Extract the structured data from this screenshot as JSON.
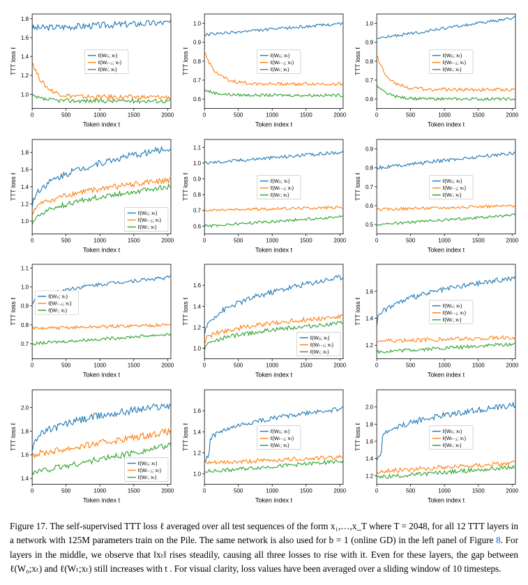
{
  "figure_number": "Figure 17.",
  "caption_text": "The self-supervised TTT loss ℓ averaged over all test sequences of the form x₁,…,x_T where T = 2048, for all 12 TTT layers in a network with 125M parameters train on the Pile. The same network is also used for b = 1 (online GD) in the left panel of Figure ",
  "caption_link": "8",
  "caption_text2": ". For layers in the middle, we observe that ‖xₜ‖ rises steadily, causing all three losses to rise with it. Even for these layers, the gap between ℓ(W₀;xₜ) and ℓ(Wₜ;xₜ) still increases with t . For visual clarity, loss values have been averaged over a sliding window of 10 timesteps.",
  "xlabel": "Token index t",
  "ylabel": "TTT loss ℓ",
  "series_colors": {
    "blue": "#1f77b4",
    "orange": "#ff7f0e",
    "green": "#2ca02c"
  },
  "legend_labels": [
    "ℓ(W₀; xₜ)",
    "ℓ(Wₜ₋₁; xₜ)",
    "ℓ(Wₜ; xₜ)"
  ],
  "xlim": [
    0,
    2048
  ],
  "xticks": [
    0,
    500,
    1000,
    1500,
    2000
  ],
  "plot_style": {
    "background_color": "#ffffff",
    "line_width": 1.1,
    "tick_fontsize": 8,
    "label_fontsize": 9,
    "legend_fontsize": 7.5,
    "noise_amplitude": 0.02
  },
  "panels": [
    {
      "ylim": [
        0.85,
        1.85
      ],
      "yticks": [
        1.0,
        1.2,
        1.4,
        1.6,
        1.8
      ],
      "legend_pos": "center",
      "series": [
        {
          "color": "blue",
          "start": 1.7,
          "end": 1.76,
          "noise": 0.035,
          "dip_start": false
        },
        {
          "color": "orange",
          "start": 1.35,
          "end": 0.97,
          "noise": 0.025,
          "dip_start": true,
          "decay": 0.15
        },
        {
          "color": "green",
          "start": 0.98,
          "end": 0.93,
          "noise": 0.022,
          "dip_start": true,
          "decay": 0.08
        }
      ]
    },
    {
      "ylim": [
        0.55,
        1.05
      ],
      "yticks": [
        0.6,
        0.7,
        0.8,
        0.9,
        1.0
      ],
      "legend_pos": "center",
      "series": [
        {
          "color": "blue",
          "start": 0.94,
          "end": 1.0,
          "noise": 0.015,
          "dip_start": false,
          "rise": true
        },
        {
          "color": "orange",
          "start": 0.85,
          "end": 0.68,
          "noise": 0.018,
          "dip_start": true,
          "decay": 0.12
        },
        {
          "color": "green",
          "start": 0.65,
          "end": 0.62,
          "noise": 0.015,
          "dip_start": true,
          "decay": 0.04
        }
      ]
    },
    {
      "ylim": [
        0.55,
        1.05
      ],
      "yticks": [
        0.6,
        0.7,
        0.8,
        0.9,
        1.0
      ],
      "legend_pos": "center",
      "series": [
        {
          "color": "blue",
          "start": 0.92,
          "end": 1.03,
          "noise": 0.015,
          "dip_start": false,
          "rise": true
        },
        {
          "color": "orange",
          "start": 0.83,
          "end": 0.65,
          "noise": 0.018,
          "dip_start": true,
          "decay": 0.14
        },
        {
          "color": "green",
          "start": 0.67,
          "end": 0.6,
          "noise": 0.015,
          "dip_start": true,
          "decay": 0.06
        }
      ]
    },
    {
      "ylim": [
        0.85,
        1.95
      ],
      "yticks": [
        1.0,
        1.2,
        1.4,
        1.6,
        1.8
      ],
      "legend_pos": "lower-right",
      "series": [
        {
          "color": "blue",
          "start": 1.15,
          "end": 1.85,
          "noise": 0.035,
          "dip_start": false,
          "rise": true,
          "log_rise": true
        },
        {
          "color": "orange",
          "start": 1.05,
          "end": 1.48,
          "noise": 0.03,
          "dip_start": false,
          "rise": true,
          "log_rise": true
        },
        {
          "color": "green",
          "start": 0.92,
          "end": 1.4,
          "noise": 0.028,
          "dip_start": false,
          "rise": true,
          "log_rise": true
        }
      ]
    },
    {
      "ylim": [
        0.55,
        1.15
      ],
      "yticks": [
        0.6,
        0.7,
        0.8,
        0.9,
        1.0,
        1.1
      ],
      "legend_pos": "center",
      "series": [
        {
          "color": "blue",
          "start": 1.0,
          "end": 1.07,
          "noise": 0.018,
          "dip_start": false,
          "rise": true
        },
        {
          "color": "orange",
          "start": 0.7,
          "end": 0.72,
          "noise": 0.015,
          "dip_start": false
        },
        {
          "color": "green",
          "start": 0.6,
          "end": 0.66,
          "noise": 0.015,
          "dip_start": false,
          "rise": true
        }
      ]
    },
    {
      "ylim": [
        0.45,
        0.95
      ],
      "yticks": [
        0.5,
        0.6,
        0.7,
        0.8,
        0.9
      ],
      "legend_pos": "center",
      "series": [
        {
          "color": "blue",
          "start": 0.8,
          "end": 0.88,
          "noise": 0.018,
          "dip_start": false,
          "rise": true
        },
        {
          "color": "orange",
          "start": 0.58,
          "end": 0.6,
          "noise": 0.015,
          "dip_start": false
        },
        {
          "color": "green",
          "start": 0.5,
          "end": 0.55,
          "noise": 0.014,
          "dip_start": false,
          "rise": true
        }
      ]
    },
    {
      "ylim": [
        0.62,
        1.12
      ],
      "yticks": [
        0.7,
        0.8,
        0.9,
        1.0,
        1.1
      ],
      "legend_pos": "upper-left-low",
      "series": [
        {
          "color": "blue",
          "start": 0.9,
          "end": 1.05,
          "noise": 0.02,
          "dip_start": false,
          "rise": true,
          "log_rise": true
        },
        {
          "color": "orange",
          "start": 0.78,
          "end": 0.8,
          "noise": 0.018,
          "dip_start": false
        },
        {
          "color": "green",
          "start": 0.7,
          "end": 0.75,
          "noise": 0.016,
          "dip_start": false,
          "rise": true
        }
      ]
    },
    {
      "ylim": [
        0.9,
        1.8
      ],
      "yticks": [
        1.0,
        1.2,
        1.4,
        1.6
      ],
      "legend_pos": "lower-right",
      "series": [
        {
          "color": "blue",
          "start": 1.1,
          "end": 1.68,
          "noise": 0.03,
          "dip_start": false,
          "rise": true,
          "log_rise": true
        },
        {
          "color": "orange",
          "start": 1.05,
          "end": 1.3,
          "noise": 0.025,
          "dip_start": false,
          "rise": true,
          "log_rise": true
        },
        {
          "color": "green",
          "start": 0.98,
          "end": 1.24,
          "noise": 0.022,
          "dip_start": false,
          "rise": true,
          "log_rise": true
        }
      ]
    },
    {
      "ylim": [
        1.1,
        1.8
      ],
      "yticks": [
        1.2,
        1.4,
        1.6
      ],
      "legend_pos": "center",
      "series": [
        {
          "color": "blue",
          "start": 1.35,
          "end": 1.7,
          "noise": 0.028,
          "dip_start": false,
          "rise": true,
          "log_rise": true
        },
        {
          "color": "orange",
          "start": 1.23,
          "end": 1.26,
          "noise": 0.022,
          "dip_start": false
        },
        {
          "color": "green",
          "start": 1.15,
          "end": 1.21,
          "noise": 0.02,
          "dip_start": false,
          "rise": true
        }
      ]
    },
    {
      "ylim": [
        1.35,
        2.15
      ],
      "yticks": [
        1.4,
        1.6,
        1.8,
        2.0
      ],
      "legend_pos": "lower-right",
      "series": [
        {
          "color": "blue",
          "start": 1.65,
          "end": 2.02,
          "noise": 0.04,
          "dip_start": false,
          "rise": true,
          "log_rise": true
        },
        {
          "color": "orange",
          "start": 1.6,
          "end": 1.8,
          "noise": 0.035,
          "dip_start": false,
          "rise": true
        },
        {
          "color": "green",
          "start": 1.45,
          "end": 1.68,
          "noise": 0.032,
          "dip_start": false,
          "rise": true
        }
      ]
    },
    {
      "ylim": [
        0.9,
        1.8
      ],
      "yticks": [
        1.0,
        1.2,
        1.4,
        1.6
      ],
      "legend_pos": "center",
      "series": [
        {
          "color": "blue",
          "start": 1.2,
          "end": 1.62,
          "noise": 0.025,
          "dip_start": true,
          "rise": true,
          "log_rise": true,
          "decay": -0.3
        },
        {
          "color": "orange",
          "start": 1.1,
          "end": 1.16,
          "noise": 0.022,
          "dip_start": false
        },
        {
          "color": "green",
          "start": 1.02,
          "end": 1.12,
          "noise": 0.02,
          "dip_start": false,
          "rise": true
        }
      ]
    },
    {
      "ylim": [
        1.1,
        2.2
      ],
      "yticks": [
        1.2,
        1.4,
        1.6,
        1.8,
        2.0
      ],
      "legend_pos": "center",
      "series": [
        {
          "color": "blue",
          "start": 1.5,
          "end": 2.02,
          "noise": 0.03,
          "dip_start": true,
          "rise": true,
          "log_rise": true,
          "decay": -0.4
        },
        {
          "color": "orange",
          "start": 1.25,
          "end": 1.35,
          "noise": 0.025,
          "dip_start": false
        },
        {
          "color": "green",
          "start": 1.18,
          "end": 1.3,
          "noise": 0.022,
          "dip_start": false,
          "rise": true
        }
      ]
    }
  ]
}
